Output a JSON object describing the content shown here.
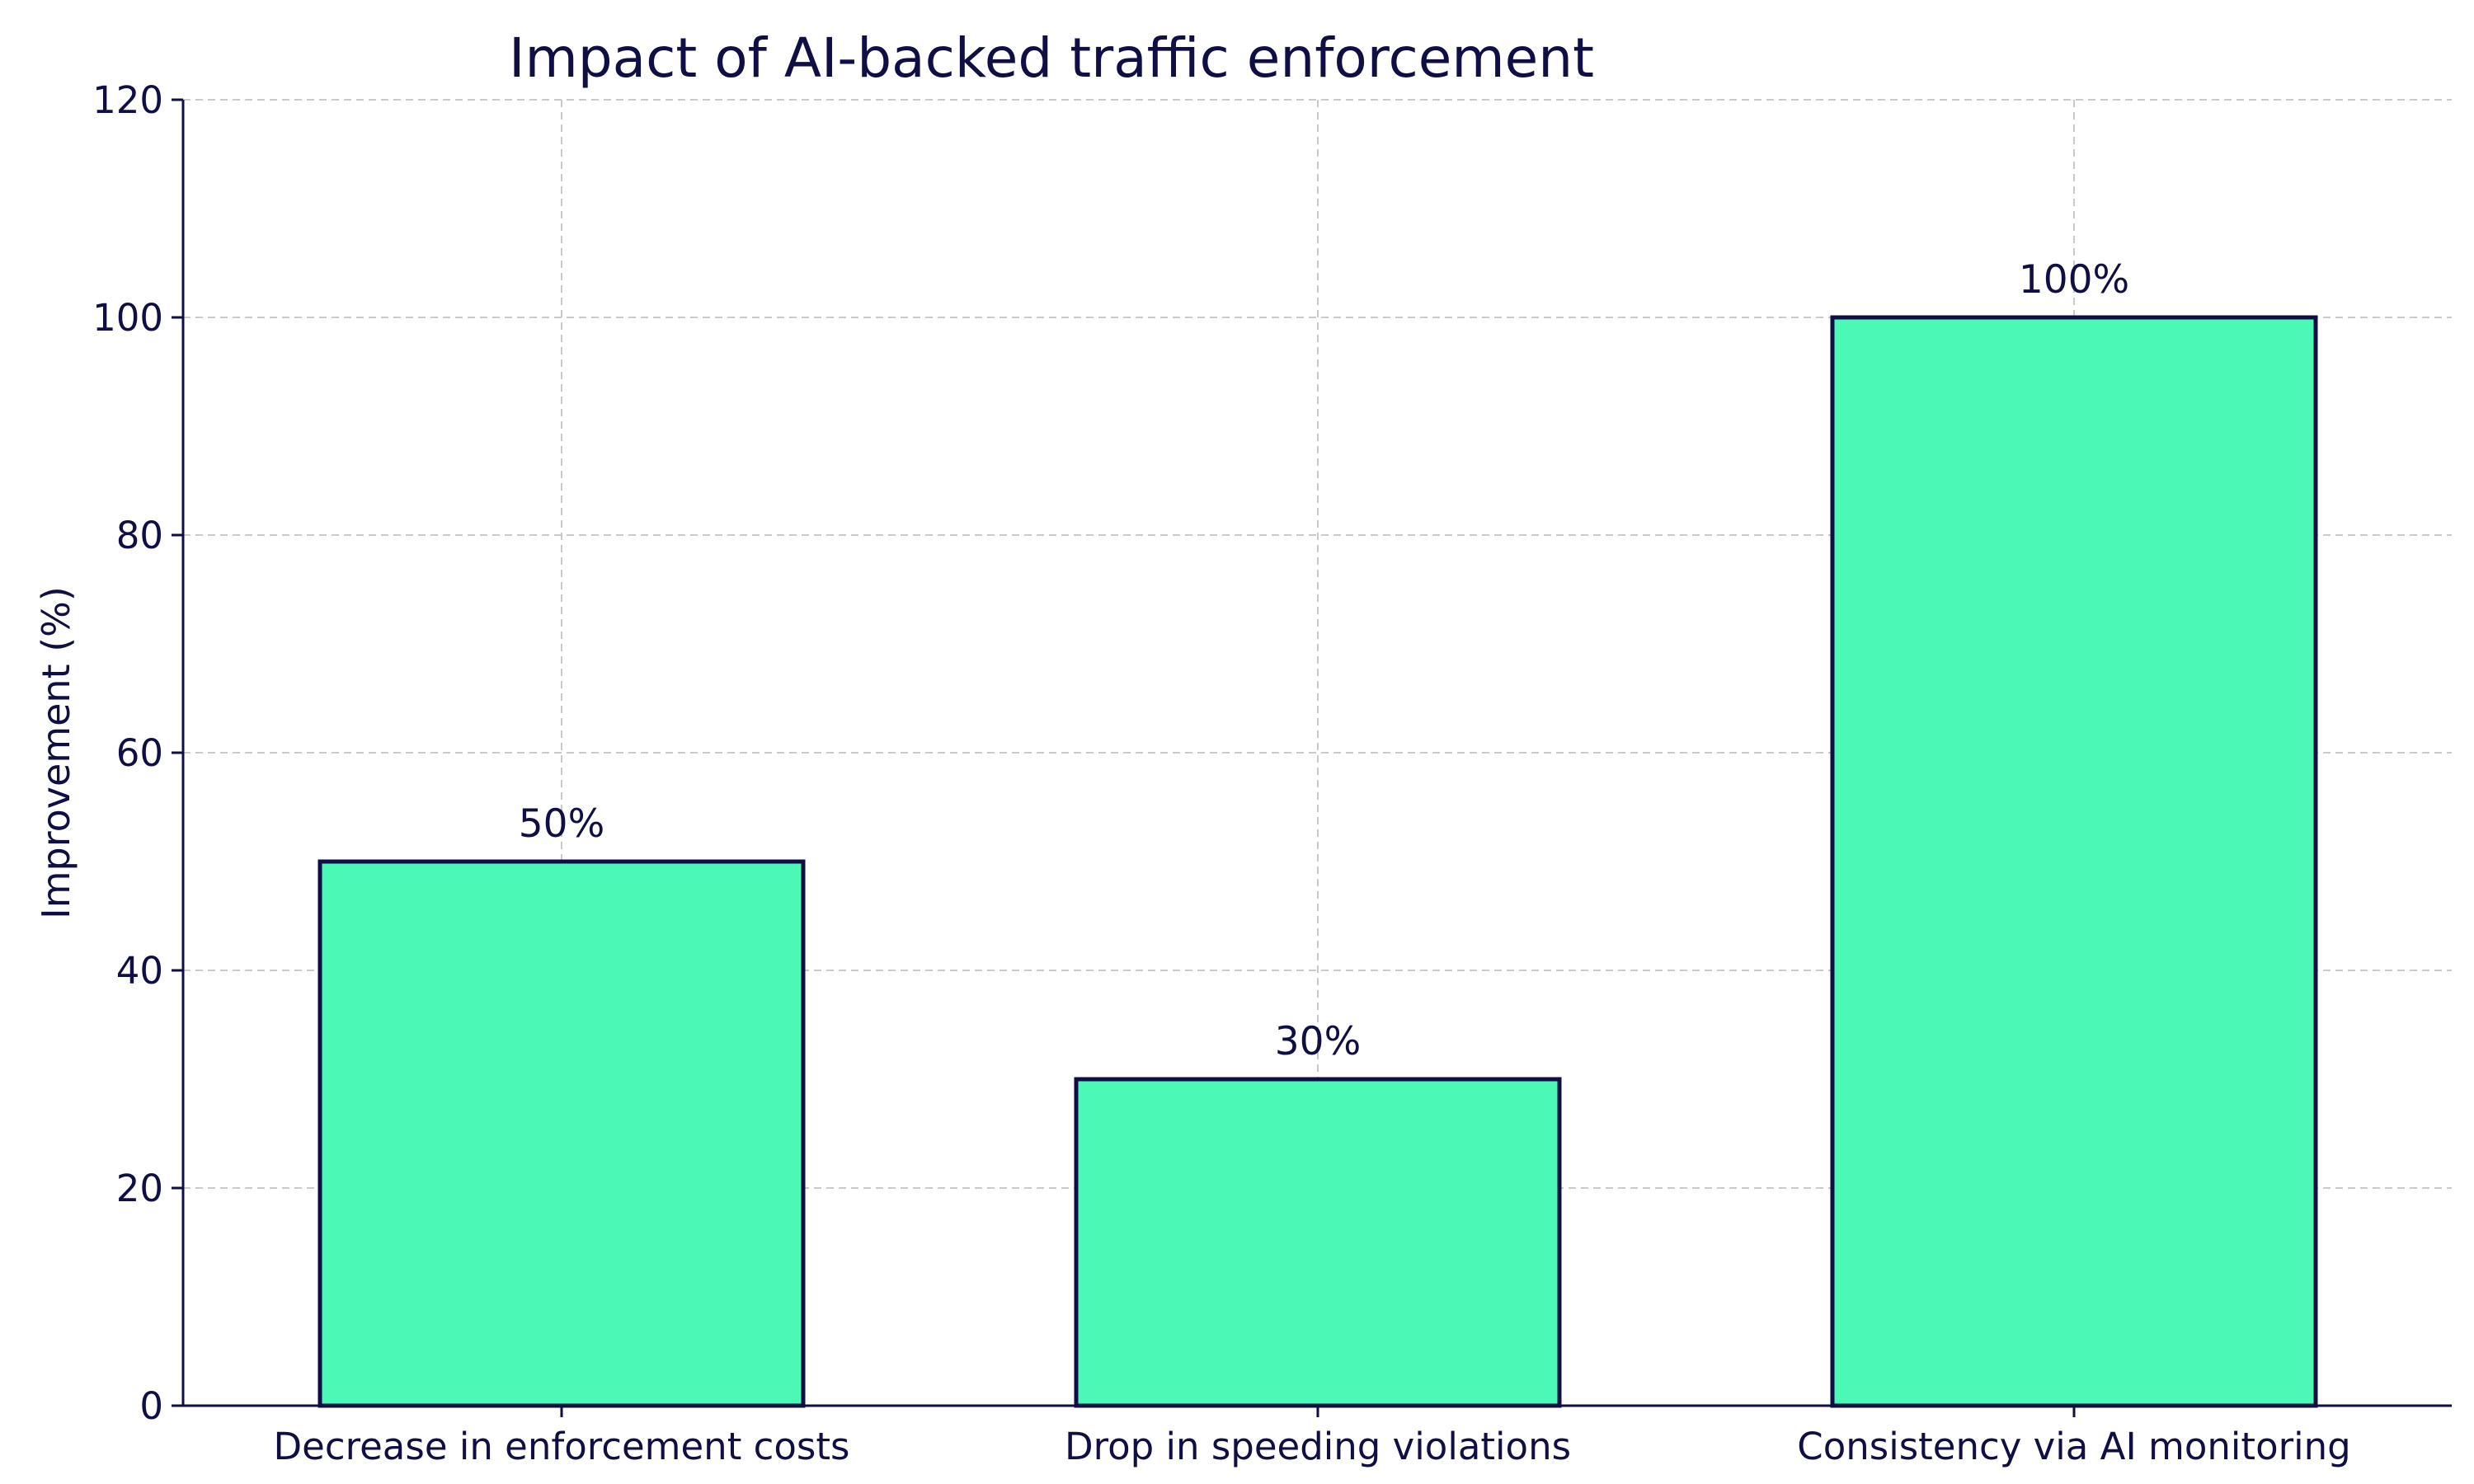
{
  "chart_data": {
    "type": "bar",
    "title": "Impact of AI-backed traffic enforcement",
    "xlabel": "",
    "ylabel": "Improvement (%)",
    "categories": [
      "Decrease in enforcement costs",
      "Drop in speeding violations",
      "Consistency via AI monitoring"
    ],
    "values": [
      50,
      30,
      100
    ],
    "value_labels": [
      "50%",
      "30%",
      "100%"
    ],
    "ylim": [
      0,
      120
    ],
    "yticks": [
      0,
      20,
      40,
      60,
      80,
      100,
      120
    ],
    "grid": true,
    "legend": "none",
    "colors": {
      "bar_fill": "#4cf8b6",
      "bar_edge": "#0f0f45",
      "text": "#0f0f45",
      "grid": "#c9c9c9"
    }
  }
}
